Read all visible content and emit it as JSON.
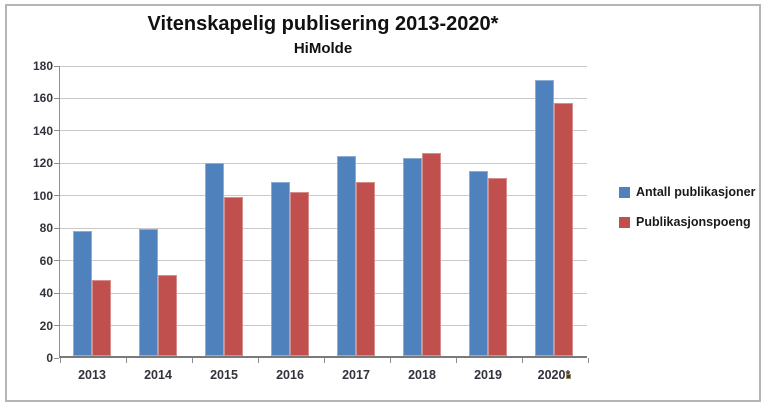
{
  "chart_data": {
    "type": "bar",
    "title": "Vitenskapelig publisering 2013-2020*",
    "subtitle": "HiMolde",
    "categories": [
      "2013",
      "2014",
      "2015",
      "2016",
      "2017",
      "2018",
      "2019",
      "2020*"
    ],
    "series": [
      {
        "name": "Antall publikasjoner",
        "color": "#4F81BD",
        "values": [
          77,
          78,
          119,
          107,
          123,
          122,
          114,
          170
        ]
      },
      {
        "name": "Publikasjonspoeng",
        "color": "#C0504D",
        "values": [
          47,
          50,
          98,
          101,
          107,
          125,
          110,
          156
        ]
      }
    ],
    "ylim": [
      0,
      180
    ],
    "ytick_step": 20,
    "ytick_labels": [
      "0",
      "20",
      "40",
      "60",
      "80",
      "100",
      "120",
      "140",
      "160",
      "180"
    ],
    "grid": true,
    "legend_position": "right"
  },
  "legend": {
    "items": [
      {
        "label": "Antall publikasjoner",
        "color": "#4F81BD"
      },
      {
        "label": "Publikasjonspoeng",
        "color": "#C0504D"
      }
    ]
  },
  "colors": {
    "bar_blue": "#4F81BD",
    "bar_red": "#C0504D",
    "gridline": "#C9C9C9",
    "axis": "#8F8F8F",
    "tick_text": "#33333D",
    "frame_border": "#B5B5B5",
    "background": "#FFFFFF"
  }
}
